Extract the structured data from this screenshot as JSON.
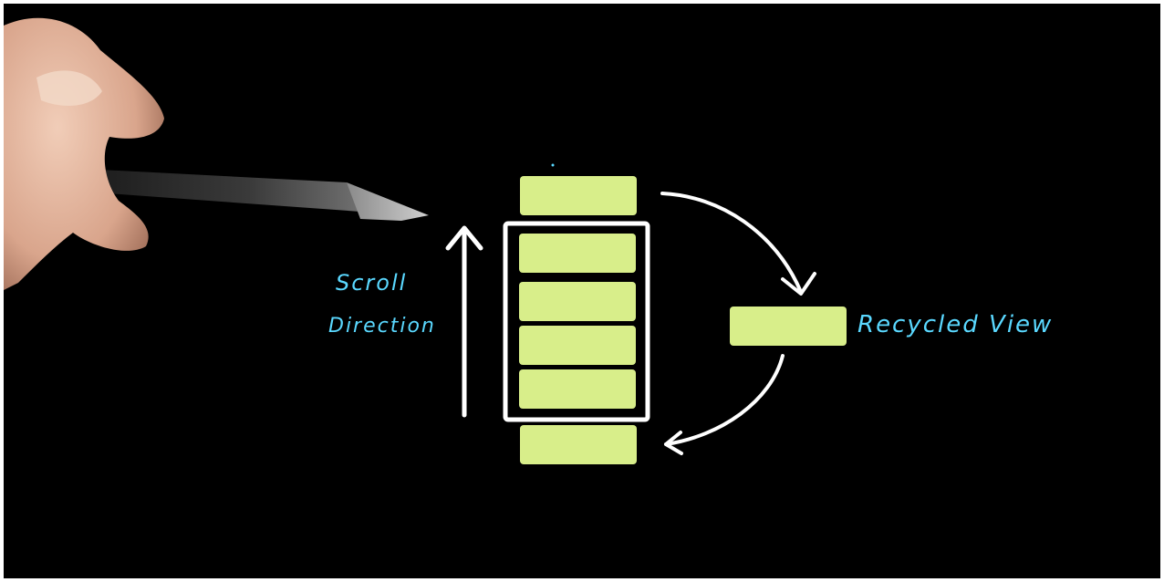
{
  "diagram": {
    "labels": {
      "scroll_line1": "Scroll",
      "scroll_line2": "Direction",
      "recycled": "Recycled View"
    },
    "colors": {
      "background": "#000000",
      "item_fill": "#d8ee8a",
      "stroke": "#ffffff",
      "annotation": "#5ad8ff"
    },
    "visible_items": 4,
    "offscreen_items": 2
  }
}
